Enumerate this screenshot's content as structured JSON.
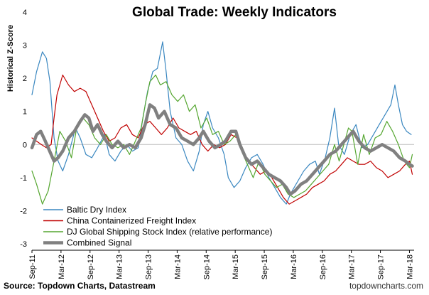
{
  "chart_data": {
    "type": "line",
    "title": "Global Trade: Weekly Indicators",
    "ylabel": "Historical Z-Score",
    "xlabel": "",
    "ylim": [
      -3,
      4
    ],
    "yticks": [
      "-3",
      "-2",
      "-1",
      "0",
      "1",
      "2",
      "3",
      "4"
    ],
    "x_range": [
      2011.67,
      2018.25
    ],
    "xticks": [
      {
        "label": "Sep-11",
        "x": 2011.67
      },
      {
        "label": "Mar-12",
        "x": 2012.17
      },
      {
        "label": "Sep-12",
        "x": 2012.67
      },
      {
        "label": "Mar-13",
        "x": 2013.17
      },
      {
        "label": "Sep-13",
        "x": 2013.67
      },
      {
        "label": "Mar-14",
        "x": 2014.17
      },
      {
        "label": "Sep-14",
        "x": 2014.67
      },
      {
        "label": "Mar-15",
        "x": 2015.17
      },
      {
        "label": "Sep-15",
        "x": 2015.67
      },
      {
        "label": "Mar-16",
        "x": 2016.17
      },
      {
        "label": "Sep-16",
        "x": 2016.67
      },
      {
        "label": "Mar-17",
        "x": 2017.17
      },
      {
        "label": "Sep-17",
        "x": 2017.67
      },
      {
        "label": "Mar-18",
        "x": 2018.17
      }
    ],
    "grid": false,
    "legend_position": "bottom-left",
    "series": [
      {
        "name": "Baltic Dry Index",
        "color": "#3a87c0",
        "width": 1.2,
        "points": [
          [
            2011.67,
            1.5
          ],
          [
            2011.75,
            2.2
          ],
          [
            2011.85,
            2.8
          ],
          [
            2011.92,
            2.6
          ],
          [
            2011.98,
            1.9
          ],
          [
            2012.05,
            0.2
          ],
          [
            2012.12,
            -0.5
          ],
          [
            2012.2,
            -0.8
          ],
          [
            2012.3,
            -0.3
          ],
          [
            2012.42,
            0.5
          ],
          [
            2012.5,
            0.2
          ],
          [
            2012.6,
            -0.3
          ],
          [
            2012.7,
            -0.4
          ],
          [
            2012.8,
            -0.1
          ],
          [
            2012.92,
            0.3
          ],
          [
            2013.0,
            -0.3
          ],
          [
            2013.1,
            -0.5
          ],
          [
            2013.2,
            -0.2
          ],
          [
            2013.3,
            0.0
          ],
          [
            2013.4,
            -0.2
          ],
          [
            2013.5,
            -0.1
          ],
          [
            2013.58,
            0.8
          ],
          [
            2013.66,
            1.6
          ],
          [
            2013.75,
            2.2
          ],
          [
            2013.83,
            2.3
          ],
          [
            2013.92,
            3.1
          ],
          [
            2013.98,
            2.2
          ],
          [
            2014.05,
            1.0
          ],
          [
            2014.15,
            0.2
          ],
          [
            2014.25,
            0.0
          ],
          [
            2014.35,
            -0.5
          ],
          [
            2014.45,
            -0.8
          ],
          [
            2014.55,
            -0.2
          ],
          [
            2014.62,
            0.6
          ],
          [
            2014.7,
            1.0
          ],
          [
            2014.78,
            0.5
          ],
          [
            2014.88,
            0.2
          ],
          [
            2014.98,
            -0.3
          ],
          [
            2015.05,
            -1.0
          ],
          [
            2015.15,
            -1.3
          ],
          [
            2015.25,
            -1.1
          ],
          [
            2015.35,
            -0.7
          ],
          [
            2015.45,
            -0.4
          ],
          [
            2015.55,
            -0.3
          ],
          [
            2015.65,
            -0.6
          ],
          [
            2015.75,
            -1.0
          ],
          [
            2015.85,
            -1.3
          ],
          [
            2015.95,
            -1.6
          ],
          [
            2016.05,
            -1.8
          ],
          [
            2016.12,
            -1.5
          ],
          [
            2016.25,
            -1.1
          ],
          [
            2016.35,
            -0.8
          ],
          [
            2016.45,
            -0.6
          ],
          [
            2016.55,
            -0.5
          ],
          [
            2016.62,
            -0.9
          ],
          [
            2016.72,
            -0.4
          ],
          [
            2016.8,
            0.2
          ],
          [
            2016.88,
            1.1
          ],
          [
            2016.95,
            0.0
          ],
          [
            2017.05,
            -0.3
          ],
          [
            2017.15,
            0.3
          ],
          [
            2017.25,
            0.6
          ],
          [
            2017.35,
            -0.1
          ],
          [
            2017.45,
            0.0
          ],
          [
            2017.55,
            0.3
          ],
          [
            2017.65,
            0.6
          ],
          [
            2017.75,
            0.9
          ],
          [
            2017.85,
            1.2
          ],
          [
            2017.92,
            1.8
          ],
          [
            2017.98,
            1.2
          ],
          [
            2018.05,
            0.6
          ],
          [
            2018.12,
            0.4
          ],
          [
            2018.2,
            0.3
          ]
        ]
      },
      {
        "name": "China Containerized Freight Index",
        "color": "#c00000",
        "width": 1.2,
        "points": [
          [
            2011.67,
            0.2
          ],
          [
            2011.75,
            0.1
          ],
          [
            2011.83,
            0.0
          ],
          [
            2011.92,
            -0.1
          ],
          [
            2012.0,
            0.0
          ],
          [
            2012.05,
            0.8
          ],
          [
            2012.1,
            1.5
          ],
          [
            2012.15,
            1.8
          ],
          [
            2012.2,
            2.1
          ],
          [
            2012.3,
            1.8
          ],
          [
            2012.4,
            1.6
          ],
          [
            2012.5,
            1.7
          ],
          [
            2012.6,
            1.6
          ],
          [
            2012.7,
            1.2
          ],
          [
            2012.8,
            0.8
          ],
          [
            2012.9,
            0.4
          ],
          [
            2013.0,
            0.1
          ],
          [
            2013.1,
            0.2
          ],
          [
            2013.2,
            0.5
          ],
          [
            2013.3,
            0.6
          ],
          [
            2013.4,
            0.3
          ],
          [
            2013.5,
            0.2
          ],
          [
            2013.6,
            0.6
          ],
          [
            2013.7,
            0.7
          ],
          [
            2013.8,
            0.5
          ],
          [
            2013.9,
            0.3
          ],
          [
            2014.0,
            0.5
          ],
          [
            2014.1,
            0.8
          ],
          [
            2014.2,
            0.5
          ],
          [
            2014.3,
            0.4
          ],
          [
            2014.4,
            0.3
          ],
          [
            2014.5,
            0.4
          ],
          [
            2014.6,
            0.0
          ],
          [
            2014.7,
            -0.2
          ],
          [
            2014.8,
            0.0
          ],
          [
            2014.9,
            -0.1
          ],
          [
            2015.0,
            0.0
          ],
          [
            2015.1,
            0.3
          ],
          [
            2015.2,
            0.2
          ],
          [
            2015.3,
            -0.2
          ],
          [
            2015.4,
            -0.5
          ],
          [
            2015.5,
            -0.7
          ],
          [
            2015.6,
            -0.9
          ],
          [
            2015.7,
            -0.8
          ],
          [
            2015.8,
            -1.0
          ],
          [
            2015.9,
            -1.3
          ],
          [
            2016.0,
            -1.6
          ],
          [
            2016.1,
            -1.8
          ],
          [
            2016.2,
            -1.7
          ],
          [
            2016.3,
            -1.6
          ],
          [
            2016.4,
            -1.5
          ],
          [
            2016.5,
            -1.3
          ],
          [
            2016.6,
            -1.2
          ],
          [
            2016.7,
            -1.1
          ],
          [
            2016.8,
            -0.9
          ],
          [
            2016.9,
            -0.8
          ],
          [
            2017.0,
            -0.6
          ],
          [
            2017.1,
            -0.4
          ],
          [
            2017.2,
            -0.5
          ],
          [
            2017.3,
            -0.6
          ],
          [
            2017.4,
            -0.6
          ],
          [
            2017.5,
            -0.5
          ],
          [
            2017.6,
            -0.7
          ],
          [
            2017.7,
            -0.8
          ],
          [
            2017.8,
            -1.0
          ],
          [
            2017.9,
            -0.9
          ],
          [
            2018.0,
            -0.8
          ],
          [
            2018.1,
            -0.6
          ],
          [
            2018.17,
            -0.5
          ],
          [
            2018.22,
            -0.9
          ]
        ]
      },
      {
        "name": "DJ Global Shipping Stock Index (relative performance)",
        "color": "#55a630",
        "width": 1.2,
        "points": [
          [
            2011.67,
            -0.8
          ],
          [
            2011.75,
            -1.2
          ],
          [
            2011.85,
            -1.8
          ],
          [
            2011.95,
            -1.4
          ],
          [
            2012.05,
            -0.5
          ],
          [
            2012.15,
            0.4
          ],
          [
            2012.25,
            0.1
          ],
          [
            2012.35,
            -0.4
          ],
          [
            2012.45,
            0.6
          ],
          [
            2012.55,
            0.8
          ],
          [
            2012.65,
            0.6
          ],
          [
            2012.75,
            0.2
          ],
          [
            2012.85,
            0.0
          ],
          [
            2012.95,
            0.3
          ],
          [
            2013.05,
            0.0
          ],
          [
            2013.15,
            -0.1
          ],
          [
            2013.25,
            0.0
          ],
          [
            2013.35,
            -0.3
          ],
          [
            2013.45,
            0.1
          ],
          [
            2013.55,
            0.5
          ],
          [
            2013.63,
            1.3
          ],
          [
            2013.7,
            1.9
          ],
          [
            2013.8,
            2.1
          ],
          [
            2013.88,
            1.8
          ],
          [
            2013.98,
            1.9
          ],
          [
            2014.08,
            1.5
          ],
          [
            2014.18,
            1.3
          ],
          [
            2014.28,
            1.5
          ],
          [
            2014.38,
            1.0
          ],
          [
            2014.48,
            1.2
          ],
          [
            2014.58,
            0.5
          ],
          [
            2014.68,
            0.8
          ],
          [
            2014.78,
            0.3
          ],
          [
            2014.88,
            0.4
          ],
          [
            2014.98,
            0.0
          ],
          [
            2015.08,
            0.1
          ],
          [
            2015.18,
            0.3
          ],
          [
            2015.28,
            -0.2
          ],
          [
            2015.38,
            -0.6
          ],
          [
            2015.48,
            -1.0
          ],
          [
            2015.58,
            -0.5
          ],
          [
            2015.68,
            -0.9
          ],
          [
            2015.78,
            -1.1
          ],
          [
            2015.88,
            -1.3
          ],
          [
            2015.98,
            -1.2
          ],
          [
            2016.08,
            -1.5
          ],
          [
            2016.18,
            -1.6
          ],
          [
            2016.28,
            -1.5
          ],
          [
            2016.38,
            -1.4
          ],
          [
            2016.48,
            -1.2
          ],
          [
            2016.58,
            -1.0
          ],
          [
            2016.68,
            -0.8
          ],
          [
            2016.78,
            -0.6
          ],
          [
            2016.88,
            0.0
          ],
          [
            2016.96,
            -0.5
          ],
          [
            2017.04,
            0.0
          ],
          [
            2017.12,
            0.5
          ],
          [
            2017.18,
            0.4
          ],
          [
            2017.28,
            -0.6
          ],
          [
            2017.38,
            0.3
          ],
          [
            2017.48,
            -0.3
          ],
          [
            2017.58,
            0.2
          ],
          [
            2017.68,
            0.3
          ],
          [
            2017.78,
            0.7
          ],
          [
            2017.88,
            0.4
          ],
          [
            2017.98,
            0.0
          ],
          [
            2018.08,
            -0.5
          ],
          [
            2018.17,
            -0.7
          ],
          [
            2018.22,
            -0.3
          ]
        ]
      },
      {
        "name": "Combined Signal",
        "color": "#808080",
        "width": 4.5,
        "points": [
          [
            2011.67,
            -0.1
          ],
          [
            2011.75,
            0.3
          ],
          [
            2011.82,
            0.4
          ],
          [
            2011.9,
            0.1
          ],
          [
            2012.0,
            -0.3
          ],
          [
            2012.05,
            -0.5
          ],
          [
            2012.12,
            -0.4
          ],
          [
            2012.2,
            -0.2
          ],
          [
            2012.3,
            0.2
          ],
          [
            2012.4,
            0.4
          ],
          [
            2012.5,
            0.7
          ],
          [
            2012.58,
            0.9
          ],
          [
            2012.65,
            0.8
          ],
          [
            2012.72,
            0.4
          ],
          [
            2012.8,
            0.6
          ],
          [
            2012.88,
            0.3
          ],
          [
            2012.95,
            0.1
          ],
          [
            2013.05,
            -0.1
          ],
          [
            2013.15,
            0.1
          ],
          [
            2013.25,
            -0.1
          ],
          [
            2013.35,
            0.0
          ],
          [
            2013.45,
            -0.1
          ],
          [
            2013.55,
            0.2
          ],
          [
            2013.62,
            0.6
          ],
          [
            2013.7,
            1.2
          ],
          [
            2013.78,
            1.1
          ],
          [
            2013.85,
            0.8
          ],
          [
            2013.95,
            1.0
          ],
          [
            2014.05,
            0.6
          ],
          [
            2014.15,
            0.5
          ],
          [
            2014.25,
            0.2
          ],
          [
            2014.35,
            0.1
          ],
          [
            2014.45,
            0.0
          ],
          [
            2014.55,
            0.2
          ],
          [
            2014.62,
            0.4
          ],
          [
            2014.72,
            0.1
          ],
          [
            2014.82,
            -0.1
          ],
          [
            2014.92,
            0.0
          ],
          [
            2015.0,
            0.1
          ],
          [
            2015.1,
            0.4
          ],
          [
            2015.18,
            0.4
          ],
          [
            2015.25,
            0.0
          ],
          [
            2015.35,
            -0.4
          ],
          [
            2015.45,
            -0.6
          ],
          [
            2015.55,
            -0.5
          ],
          [
            2015.65,
            -0.7
          ],
          [
            2015.75,
            -0.9
          ],
          [
            2015.85,
            -1.0
          ],
          [
            2015.95,
            -1.1
          ],
          [
            2016.05,
            -1.3
          ],
          [
            2016.12,
            -1.5
          ],
          [
            2016.2,
            -1.4
          ],
          [
            2016.3,
            -1.2
          ],
          [
            2016.4,
            -1.1
          ],
          [
            2016.5,
            -0.9
          ],
          [
            2016.6,
            -0.7
          ],
          [
            2016.7,
            -0.5
          ],
          [
            2016.8,
            -0.3
          ],
          [
            2016.9,
            -0.2
          ],
          [
            2017.0,
            0.0
          ],
          [
            2017.1,
            0.2
          ],
          [
            2017.2,
            0.4
          ],
          [
            2017.3,
            0.1
          ],
          [
            2017.4,
            -0.1
          ],
          [
            2017.5,
            -0.2
          ],
          [
            2017.6,
            -0.1
          ],
          [
            2017.7,
            0.0
          ],
          [
            2017.8,
            -0.1
          ],
          [
            2017.9,
            -0.2
          ],
          [
            2018.0,
            -0.4
          ],
          [
            2018.1,
            -0.5
          ],
          [
            2018.17,
            -0.6
          ],
          [
            2018.22,
            -0.65
          ]
        ]
      }
    ]
  },
  "footer": {
    "source": "Source: Topdown Charts, Datastream",
    "brand": "topdowncharts.com"
  }
}
